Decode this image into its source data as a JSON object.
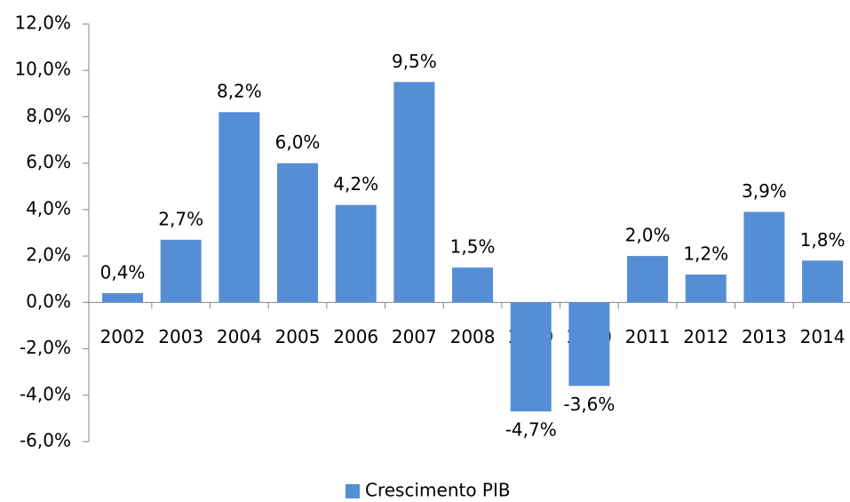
{
  "chart_data": {
    "type": "bar",
    "categories": [
      "2002",
      "2003",
      "2004",
      "2005",
      "2006",
      "2007",
      "2008",
      "2009",
      "2010",
      "2011",
      "2012",
      "2013",
      "2014"
    ],
    "series": [
      {
        "name": "Crescimento PIB",
        "color": "#558ed5",
        "values": [
          0.4,
          2.7,
          8.2,
          6.0,
          4.2,
          9.5,
          1.5,
          -4.7,
          -3.6,
          2.0,
          1.2,
          3.9,
          1.8
        ],
        "value_labels": [
          "0,4%",
          "2,7%",
          "8,2%",
          "6,0%",
          "4,2%",
          "9,5%",
          "1,5%",
          "-4,7%",
          "-3,6%",
          "2,0%",
          "1,2%",
          "3,9%",
          "1,8%"
        ]
      }
    ],
    "ylim": [
      -6,
      12
    ],
    "yticks": [
      {
        "value": -6,
        "label": "-6,0%"
      },
      {
        "value": -4,
        "label": "-4,0%"
      },
      {
        "value": -2,
        "label": "-2,0%"
      },
      {
        "value": 0,
        "label": "0,0%"
      },
      {
        "value": 2,
        "label": "2,0%"
      },
      {
        "value": 4,
        "label": "4,0%"
      },
      {
        "value": 6,
        "label": "6,0%"
      },
      {
        "value": 8,
        "label": "8,0%"
      },
      {
        "value": 10,
        "label": "10,0%"
      },
      {
        "value": 12,
        "label": "12,0%"
      }
    ],
    "grid": false,
    "legend": "bottom"
  }
}
